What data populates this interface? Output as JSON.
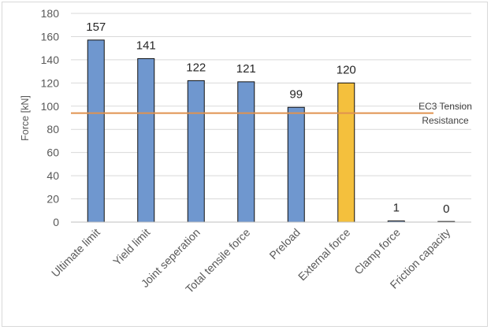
{
  "chart_data": {
    "type": "bar",
    "title": "",
    "xlabel": "",
    "ylabel": "Force [kN]",
    "ylim": [
      0,
      180
    ],
    "yticks": [
      0,
      20,
      40,
      60,
      80,
      100,
      120,
      140,
      160,
      180
    ],
    "categories": [
      "Ultimate limit",
      "Yield limit",
      "Joint seperation",
      "Total tensile force",
      "Preload",
      "External force",
      "Clamp force",
      "Friction capacity"
    ],
    "values": [
      157,
      141,
      122,
      121,
      99,
      120,
      1,
      0
    ],
    "data_labels": [
      "157",
      "141",
      "122",
      "121",
      "99",
      "120",
      "1",
      "0"
    ],
    "bar_colors": [
      "#6f97cf",
      "#6f97cf",
      "#6f97cf",
      "#6f97cf",
      "#6f97cf",
      "#f4c03d",
      "#6f97cf",
      "#6f97cf"
    ],
    "grid": true,
    "reference_line": {
      "value": 94,
      "label_lines": [
        "EC3 Tension",
        "Resistance"
      ],
      "color": "#e0924f"
    }
  }
}
